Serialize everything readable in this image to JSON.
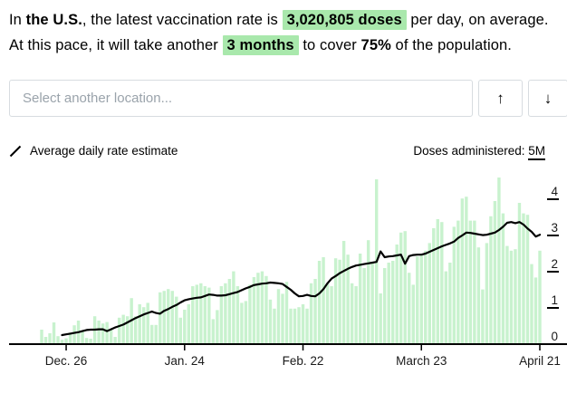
{
  "summary": {
    "prefix": "In ",
    "location_bold": "the U.S.",
    "mid1": ", the latest vaccination rate is ",
    "rate_highlight": "3,020,805 doses",
    "mid2": " per day, on average. At this pace, it will take another ",
    "duration_highlight": "3 months",
    "mid3": " to cover ",
    "coverage_bold": "75%",
    "suffix": " of the population."
  },
  "location_selector": {
    "placeholder": "Select another location...",
    "up_button": "↑",
    "down_button": "↓"
  },
  "legend": {
    "line_series_label": "Average daily rate estimate",
    "bar_series_label": "Doses administered: ",
    "y_axis_top_value": "5M"
  },
  "colors": {
    "highlight_green": "#a9e8ac",
    "bar_green": "#c8f2ce",
    "line_black": "#000000",
    "axis_black": "#000000",
    "tick_label": "#1a1a1a"
  },
  "chart_data": {
    "type": "bar+line",
    "title": "",
    "xlabel": "",
    "ylabel": "Doses administered (millions per day)",
    "ylim": [
      0,
      5
    ],
    "grid": false,
    "legend_position": "top",
    "x_tick_labels": [
      "Dec. 26",
      "Jan. 24",
      "Feb. 22",
      "March 23",
      "April 21"
    ],
    "x_tick_indices": [
      6,
      35,
      64,
      93,
      122
    ],
    "y_ticks": [
      0,
      1,
      2,
      3,
      4
    ],
    "y_axis_unit_top": "5M",
    "series": [
      {
        "name": "Doses administered (daily, millions)",
        "type": "bar",
        "values": [
          0.4,
          0.2,
          0.3,
          0.6,
          0.22,
          0.12,
          0.16,
          0.32,
          0.52,
          0.65,
          0.36,
          0.17,
          0.15,
          0.77,
          0.65,
          0.57,
          0.61,
          0.4,
          0.2,
          0.73,
          0.81,
          0.77,
          1.27,
          0.77,
          1.1,
          1.02,
          1.14,
          0.53,
          0.53,
          1.43,
          1.47,
          1.52,
          1.47,
          1.31,
          0.73,
          0.95,
          1.1,
          1.6,
          1.64,
          1.68,
          1.6,
          1.56,
          0.69,
          0.94,
          1.6,
          1.68,
          1.8,
          2.01,
          1.6,
          1.14,
          1.19,
          1.64,
          1.85,
          1.97,
          2.01,
          1.88,
          1.23,
          0.98,
          1.52,
          1.39,
          1.72,
          0.98,
          0.98,
          1.02,
          1.1,
          0.98,
          1.68,
          1.8,
          2.3,
          2.4,
          1.68,
          1.6,
          2.37,
          2.33,
          2.85,
          2.47,
          1.68,
          1.6,
          2.5,
          2.1,
          2.87,
          2.25,
          4.55,
          1.4,
          2.1,
          2.25,
          2.3,
          2.75,
          3.08,
          3.12,
          1.97,
          1.64,
          2.42,
          2.47,
          2.58,
          2.79,
          3.2,
          3.45,
          3.37,
          2.01,
          2.25,
          3.24,
          3.41,
          4.02,
          4.07,
          3.41,
          3.41,
          2.67,
          1.51,
          2.79,
          3.53,
          3.95,
          4.6,
          3.61,
          2.71,
          2.58,
          2.62,
          3.9,
          3.61,
          3.57,
          2.21,
          1.84,
          2.58
        ]
      },
      {
        "name": "Average daily rate estimate (7-day avg, millions)",
        "type": "line",
        "values": [
          null,
          null,
          null,
          null,
          null,
          0.25,
          0.27,
          0.29,
          0.31,
          0.33,
          0.36,
          0.39,
          0.4,
          0.4,
          0.41,
          0.41,
          0.36,
          0.41,
          0.46,
          0.5,
          0.54,
          0.6,
          0.66,
          0.72,
          0.77,
          0.82,
          0.86,
          0.9,
          0.86,
          0.84,
          0.92,
          0.97,
          1.03,
          1.08,
          1.15,
          1.21,
          1.24,
          1.26,
          1.28,
          1.29,
          1.33,
          1.37,
          1.36,
          1.34,
          1.34,
          1.35,
          1.38,
          1.41,
          1.44,
          1.49,
          1.54,
          1.58,
          1.63,
          1.65,
          1.67,
          1.68,
          1.7,
          1.69,
          1.68,
          1.66,
          1.58,
          1.5,
          1.4,
          1.32,
          1.33,
          1.36,
          1.33,
          1.32,
          1.4,
          1.52,
          1.68,
          1.81,
          1.88,
          1.96,
          2.02,
          2.08,
          2.13,
          2.17,
          2.19,
          2.21,
          2.23,
          2.25,
          2.27,
          2.56,
          2.4,
          2.42,
          2.43,
          2.45,
          2.47,
          2.22,
          2.43,
          2.46,
          2.47,
          2.47,
          2.5,
          2.55,
          2.6,
          2.65,
          2.7,
          2.74,
          2.78,
          2.83,
          2.93,
          3.0,
          3.08,
          3.07,
          3.05,
          3.03,
          3.01,
          3.02,
          3.05,
          3.08,
          3.15,
          3.24,
          3.35,
          3.37,
          3.34,
          3.37,
          3.3,
          3.19,
          3.1,
          2.97,
          3.02
        ]
      }
    ],
    "latest_average_value": "3,020,805 doses per day"
  }
}
